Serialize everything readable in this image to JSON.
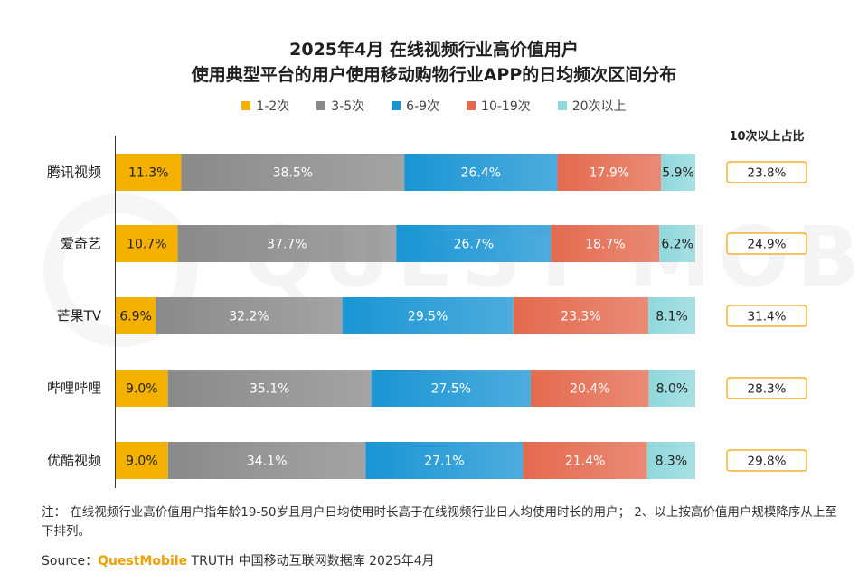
{
  "chart_data": {
    "type": "bar",
    "orientation": "horizontal",
    "stacked": true,
    "title": "2025年4月 在线视频行业高价值用户",
    "subtitle": "使用典型平台的用户使用移动购物行业APP的日均频次区间分布",
    "categories": [
      "腾讯视频",
      "爱奇艺",
      "芒果TV",
      "哔哩哔哩",
      "优酷视频"
    ],
    "series": [
      {
        "name": "1-2次",
        "color": "#f5b100",
        "values": [
          11.3,
          10.7,
          6.9,
          9.0,
          9.0
        ]
      },
      {
        "name": "3-5次",
        "color": "#8a8a8a",
        "values": [
          38.5,
          37.7,
          32.2,
          35.1,
          34.1
        ]
      },
      {
        "name": "6-9次",
        "color": "#1a95d4",
        "values": [
          26.4,
          26.7,
          29.5,
          27.5,
          27.1
        ]
      },
      {
        "name": "10-19次",
        "color": "#e46a4f",
        "values": [
          17.9,
          18.7,
          23.3,
          20.4,
          21.4
        ]
      },
      {
        "name": "20次以上",
        "color": "#8fd8dc",
        "values": [
          5.9,
          6.2,
          8.1,
          8.0,
          8.3
        ]
      }
    ],
    "value_suffix": "%",
    "legend_position": "top",
    "side_column": {
      "header": "10次以上占比",
      "values": [
        "23.8%",
        "24.9%",
        "31.4%",
        "28.3%",
        "29.8%"
      ],
      "border_color": "#f0a000"
    },
    "xlim": [
      0,
      100
    ],
    "grid": false
  },
  "watermark": "QUEST MOBILE",
  "note": "注：  在线视频行业高价值用户指年龄19-50岁且用户日均使用时长高于在线视频行业日人均使用时长的用户；  2、以上按高价值用户规模降序从上至下排列。",
  "source": {
    "label": "Source：",
    "brand": "QuestMobile",
    "rest": " TRUTH 中国移动互联网数据库 2025年4月"
  }
}
